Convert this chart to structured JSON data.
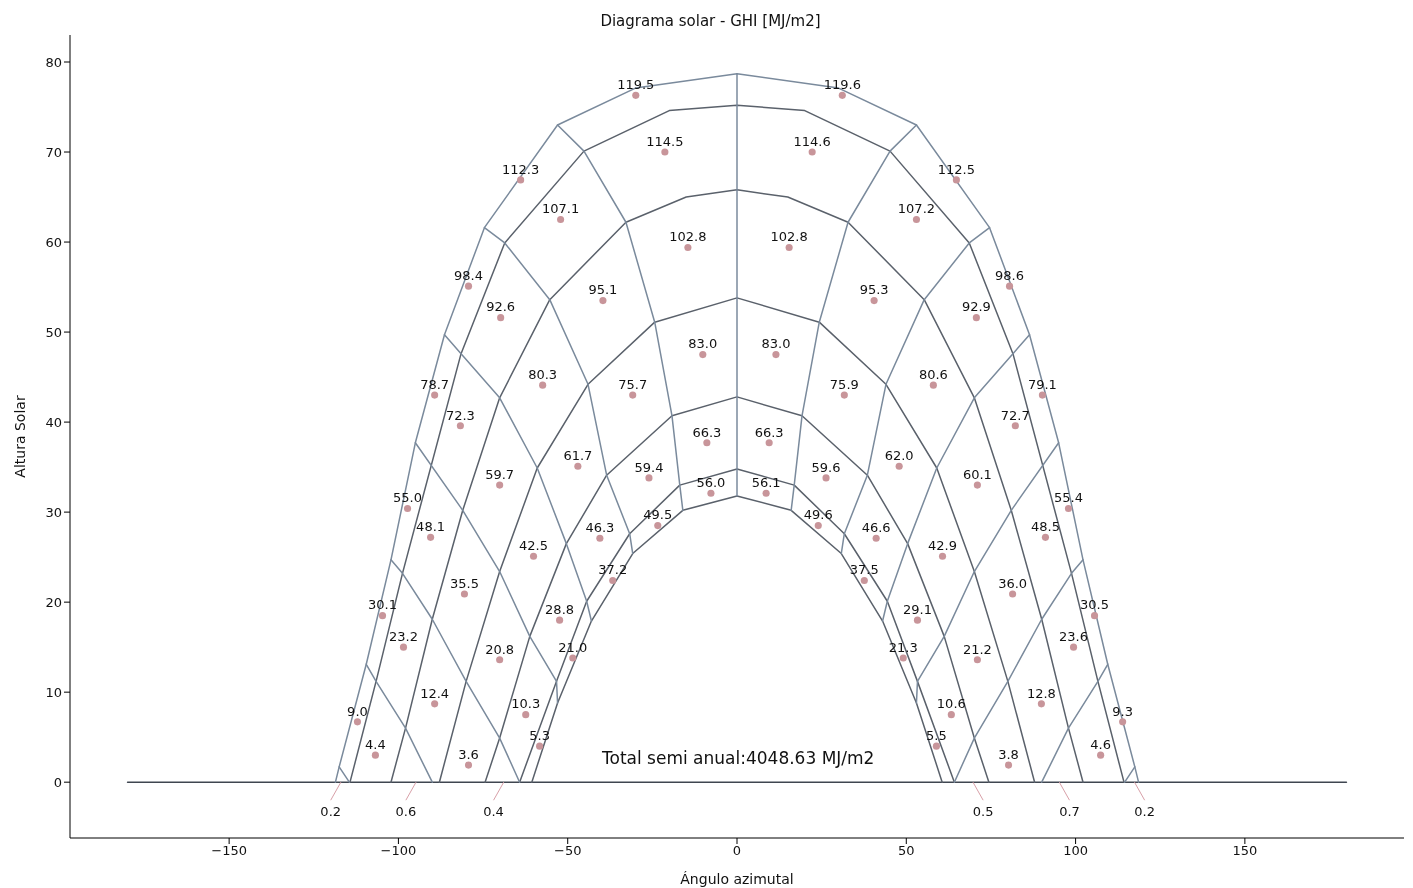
{
  "chart_data": {
    "type": "scatter",
    "title": "Diagrama solar - GHI [MJ/m2]",
    "xlabel": "Ángulo azimutal",
    "ylabel": "Altura Solar",
    "xlim": [
      -197,
      197
    ],
    "xticks": [
      -150,
      -100,
      -50,
      0,
      50,
      100,
      150
    ],
    "ylim": [
      -6.2,
      83
    ],
    "yticks": [
      0,
      10,
      20,
      30,
      40,
      50,
      60,
      70,
      80
    ],
    "annotations": [
      "Total semi anual:4048.63 MJ/m2",
      {
        "text": "0.2",
        "x": -117,
        "y": 0
      },
      {
        "text": "0.6",
        "x": -94.8,
        "y": 0
      },
      {
        "text": "0.4",
        "x": -68.9,
        "y": 0
      },
      {
        "text": "0.5",
        "x": 69.7,
        "y": 0
      },
      {
        "text": "0.7",
        "x": 95.2,
        "y": 0
      },
      {
        "text": "0.2",
        "x": 117.4,
        "y": 0
      },
      {
        "text": "119.5",
        "x": -29.9,
        "y": 76.3
      },
      {
        "text": "112.3",
        "x": -63.9,
        "y": 66.9
      },
      {
        "text": "114.5",
        "x": -21.3,
        "y": 70.0
      },
      {
        "text": "107.1",
        "x": -52.1,
        "y": 62.5
      },
      {
        "text": "102.8",
        "x": -14.5,
        "y": 59.4
      },
      {
        "text": "98.4",
        "x": -79.3,
        "y": 55.1
      },
      {
        "text": "92.6",
        "x": -69.8,
        "y": 51.6
      },
      {
        "text": "95.1",
        "x": -39.6,
        "y": 53.5
      },
      {
        "text": "83.0",
        "x": -10.1,
        "y": 47.5
      },
      {
        "text": "80.3",
        "x": -57.4,
        "y": 44.1
      },
      {
        "text": "75.7",
        "x": -30.8,
        "y": 43.0
      },
      {
        "text": "78.7",
        "x": -89.3,
        "y": 43.0
      },
      {
        "text": "72.3",
        "x": -81.7,
        "y": 39.6
      },
      {
        "text": "66.3",
        "x": -8.9,
        "y": 37.7
      },
      {
        "text": "61.7",
        "x": -47.0,
        "y": 35.1
      },
      {
        "text": "59.4",
        "x": -26.0,
        "y": 33.8
      },
      {
        "text": "59.7",
        "x": -70.1,
        "y": 33.0
      },
      {
        "text": "56.0",
        "x": -7.7,
        "y": 32.1
      },
      {
        "text": "55.0",
        "x": -97.3,
        "y": 30.4
      },
      {
        "text": "49.5",
        "x": -23.4,
        "y": 28.5
      },
      {
        "text": "48.1",
        "x": -90.5,
        "y": 27.2
      },
      {
        "text": "46.3",
        "x": -40.5,
        "y": 27.1
      },
      {
        "text": "42.5",
        "x": -60.1,
        "y": 25.1
      },
      {
        "text": "37.2",
        "x": -36.7,
        "y": 22.4
      },
      {
        "text": "35.5",
        "x": -80.5,
        "y": 20.9
      },
      {
        "text": "28.8",
        "x": -52.4,
        "y": 18.0
      },
      {
        "text": "30.1",
        "x": -104.7,
        "y": 18.5
      },
      {
        "text": "23.2",
        "x": -98.5,
        "y": 15.0
      },
      {
        "text": "20.8",
        "x": -70.1,
        "y": 13.6
      },
      {
        "text": "21.0",
        "x": -48.5,
        "y": 13.8
      },
      {
        "text": "12.4",
        "x": -89.3,
        "y": 8.7
      },
      {
        "text": "10.3",
        "x": -62.4,
        "y": 7.5
      },
      {
        "text": "9.0",
        "x": -112.1,
        "y": 6.7
      },
      {
        "text": "5.3",
        "x": -58.3,
        "y": 4.0
      },
      {
        "text": "4.4",
        "x": -106.8,
        "y": 3.0
      },
      {
        "text": "3.6",
        "x": -79.3,
        "y": 1.9
      },
      {
        "text": "119.6",
        "x": 31.1,
        "y": 76.3
      },
      {
        "text": "114.6",
        "x": 22.2,
        "y": 70.0
      },
      {
        "text": "112.5",
        "x": 64.8,
        "y": 66.9
      },
      {
        "text": "107.2",
        "x": 53.0,
        "y": 62.5
      },
      {
        "text": "102.8",
        "x": 15.4,
        "y": 59.4
      },
      {
        "text": "98.6",
        "x": 80.5,
        "y": 55.1
      },
      {
        "text": "95.3",
        "x": 40.5,
        "y": 53.5
      },
      {
        "text": "92.9",
        "x": 70.7,
        "y": 51.6
      },
      {
        "text": "83.0",
        "x": 11.5,
        "y": 47.5
      },
      {
        "text": "80.6",
        "x": 58.0,
        "y": 44.1
      },
      {
        "text": "79.1",
        "x": 90.2,
        "y": 43.0
      },
      {
        "text": "75.9",
        "x": 31.7,
        "y": 43.0
      },
      {
        "text": "72.7",
        "x": 82.2,
        "y": 39.6
      },
      {
        "text": "66.3",
        "x": 9.5,
        "y": 37.7
      },
      {
        "text": "62.0",
        "x": 47.9,
        "y": 35.1
      },
      {
        "text": "59.6",
        "x": 26.3,
        "y": 33.8
      },
      {
        "text": "60.1",
        "x": 71.0,
        "y": 33.0
      },
      {
        "text": "56.1",
        "x": 8.6,
        "y": 32.1
      },
      {
        "text": "55.4",
        "x": 97.9,
        "y": 30.4
      },
      {
        "text": "49.6",
        "x": 24.0,
        "y": 28.5
      },
      {
        "text": "48.5",
        "x": 91.1,
        "y": 27.2
      },
      {
        "text": "46.6",
        "x": 41.1,
        "y": 27.1
      },
      {
        "text": "42.9",
        "x": 60.7,
        "y": 25.1
      },
      {
        "text": "37.5",
        "x": 37.6,
        "y": 22.4
      },
      {
        "text": "36.0",
        "x": 81.4,
        "y": 20.9
      },
      {
        "text": "29.1",
        "x": 53.3,
        "y": 18.0
      },
      {
        "text": "30.5",
        "x": 105.6,
        "y": 18.5
      },
      {
        "text": "23.6",
        "x": 99.4,
        "y": 15.0
      },
      {
        "text": "21.2",
        "x": 71.0,
        "y": 13.6
      },
      {
        "text": "21.3",
        "x": 49.1,
        "y": 13.8
      },
      {
        "text": "12.8",
        "x": 89.9,
        "y": 8.7
      },
      {
        "text": "10.6",
        "x": 63.3,
        "y": 7.5
      },
      {
        "text": "9.3",
        "x": 113.9,
        "y": 6.7
      },
      {
        "text": "5.5",
        "x": 58.9,
        "y": 4.0
      },
      {
        "text": "4.6",
        "x": 107.4,
        "y": 3.0
      },
      {
        "text": "3.8",
        "x": 80.2,
        "y": 1.9
      }
    ],
    "series": [
      {
        "type": "line",
        "color": "#3f4650",
        "x": [
          -180,
          180
        ],
        "values": [
          0,
          0
        ]
      },
      {
        "type": "line",
        "color": "#7a8a9c",
        "x": [
          -118.6,
          -117.5,
          -109.5,
          -102.2,
          -95,
          -86.4,
          -74.6,
          -53,
          -30,
          0,
          30,
          53,
          74.6,
          86.4,
          95,
          102.2,
          109.5,
          117.5,
          118.6
        ],
        "values": [
          0,
          1.7,
          13.1,
          24.7,
          37.7,
          49.7,
          61.6,
          73,
          77.1,
          78.7,
          77.1,
          73,
          61.6,
          49.7,
          37.7,
          24.7,
          13.1,
          1.7,
          0
        ]
      },
      {
        "type": "line",
        "color": "#5a616b",
        "x": [
          -114.3,
          -106.6,
          -98.8,
          -81.5,
          -68.6,
          -45.2,
          -20,
          0,
          20,
          45.2,
          68.6,
          81.5,
          98.8,
          106.6,
          114.3
        ],
        "values": [
          0,
          11.2,
          23.2,
          47.6,
          59.9,
          70.1,
          74.6,
          75.2,
          74.6,
          70.1,
          59.9,
          47.6,
          23.2,
          11.2,
          0
        ]
      },
      {
        "type": "line",
        "color": "#5a616b",
        "x": [
          -102.2,
          -97.9,
          -90,
          -81,
          -70.1,
          -55.3,
          -32.8,
          -15,
          0,
          15,
          32.8,
          55.3,
          70.1,
          81,
          90,
          97.9,
          102.2
        ],
        "values": [
          0,
          6,
          18.1,
          30.2,
          42.7,
          53.6,
          62.2,
          65,
          65.8,
          65,
          62.2,
          53.6,
          42.7,
          30.2,
          18.1,
          6,
          0
        ]
      },
      {
        "type": "line",
        "color": "#5a616b",
        "x": [
          -87.9,
          -80,
          -70.1,
          -59,
          -44,
          -24.3,
          0,
          24.3,
          44,
          59,
          70.1,
          80,
          87.9
        ],
        "values": [
          0,
          11.2,
          23.4,
          34.9,
          44.2,
          51.1,
          53.8,
          51.1,
          44.2,
          34.9,
          23.4,
          11.2,
          0
        ]
      },
      {
        "type": "line",
        "color": "#5a616b",
        "x": [
          -74.4,
          -70.1,
          -61.2,
          -50.4,
          -38.5,
          -19.2,
          0,
          19.2,
          38.5,
          50.4,
          61.2,
          70.1,
          74.4
        ],
        "values": [
          0,
          4.9,
          16.2,
          26.5,
          34.1,
          40.7,
          42.8,
          40.7,
          34.1,
          26.5,
          16.2,
          4.9,
          0
        ]
      },
      {
        "type": "line",
        "color": "#5a616b",
        "x": [
          -64.2,
          -53.3,
          -44.4,
          -31.7,
          -16.9,
          0,
          16.9,
          31.7,
          44.4,
          53.3,
          64.2
        ],
        "values": [
          0,
          11.2,
          20.1,
          27.6,
          33,
          34.8,
          33,
          27.6,
          20.1,
          11.2,
          0
        ]
      },
      {
        "type": "line",
        "color": "#5a616b",
        "x": [
          -60.6,
          -53,
          -43,
          -30.8,
          -16,
          0,
          16,
          30.8,
          43,
          53,
          60.6
        ],
        "values": [
          0,
          8.8,
          17.9,
          25.4,
          30.2,
          31.8,
          30.2,
          25.4,
          17.9,
          8.8,
          0
        ]
      },
      {
        "type": "line",
        "color": "#7a8a9c",
        "x": [
          0,
          0
        ],
        "values": [
          78.7,
          31.8
        ]
      },
      {
        "type": "line",
        "color": "#7a8a9c",
        "x": [
          -53,
          -45.2,
          -32.8,
          -24.3,
          -19.2,
          -16.9,
          -16
        ],
        "values": [
          73,
          70.1,
          62.2,
          51.1,
          40.7,
          33,
          30.2
        ]
      },
      {
        "type": "line",
        "color": "#7a8a9c",
        "x": [
          -74.6,
          -68.6,
          -55.3,
          -44,
          -38.5,
          -31.7,
          -30.8
        ],
        "values": [
          61.6,
          59.9,
          53.6,
          44.2,
          34.1,
          27.6,
          25.4
        ]
      },
      {
        "type": "line",
        "color": "#7a8a9c",
        "x": [
          -86.4,
          -81.5,
          -70.1,
          -59,
          -50.4,
          -44.4,
          -43
        ],
        "values": [
          49.7,
          47.6,
          42.7,
          34.9,
          26.5,
          20.1,
          17.9
        ]
      },
      {
        "type": "line",
        "color": "#7a8a9c",
        "x": [
          -95,
          -81,
          -70.1,
          -61.2,
          -53.3,
          -53
        ],
        "values": [
          37.7,
          30.2,
          23.4,
          16.2,
          11.2,
          8.8
        ]
      },
      {
        "type": "line",
        "color": "#7a8a9c",
        "x": [
          -102.2,
          -98.8,
          -90,
          -80,
          -70.1,
          -64.2
        ],
        "values": [
          24.7,
          23.2,
          18.1,
          11.2,
          4.9,
          0
        ]
      },
      {
        "type": "line",
        "color": "#7a8a9c",
        "x": [
          -109.5,
          -106.6,
          -97.9,
          -90
        ],
        "values": [
          13.1,
          11.2,
          6,
          0
        ]
      },
      {
        "type": "line",
        "color": "#7a8a9c",
        "x": [
          -117.5,
          -114.5
        ],
        "values": [
          1.7,
          0
        ]
      },
      {
        "type": "line",
        "color": "#7a8a9c",
        "x": [
          53,
          45.2,
          32.8,
          24.3,
          19.2,
          16.9,
          16
        ],
        "values": [
          73,
          70.1,
          62.2,
          51.1,
          40.7,
          33,
          30.2
        ]
      },
      {
        "type": "line",
        "color": "#7a8a9c",
        "x": [
          74.6,
          68.6,
          55.3,
          44,
          38.5,
          31.7,
          30.8
        ],
        "values": [
          61.6,
          59.9,
          53.6,
          44.2,
          34.1,
          27.6,
          25.4
        ]
      },
      {
        "type": "line",
        "color": "#7a8a9c",
        "x": [
          86.4,
          81.5,
          70.1,
          59,
          50.4,
          44.4,
          43
        ],
        "values": [
          49.7,
          47.6,
          42.7,
          34.9,
          26.5,
          20.1,
          17.9
        ]
      },
      {
        "type": "line",
        "color": "#7a8a9c",
        "x": [
          95,
          81,
          70.1,
          61.2,
          53.3,
          53
        ],
        "values": [
          37.7,
          30.2,
          23.4,
          16.2,
          11.2,
          8.8
        ]
      },
      {
        "type": "line",
        "color": "#7a8a9c",
        "x": [
          102.2,
          98.8,
          90,
          80,
          70.1,
          64.2
        ],
        "values": [
          24.7,
          23.2,
          18.1,
          11.2,
          4.9,
          0
        ]
      },
      {
        "type": "line",
        "color": "#7a8a9c",
        "x": [
          109.5,
          106.6,
          97.9,
          90
        ],
        "values": [
          13.1,
          11.2,
          6,
          0
        ]
      },
      {
        "type": "line",
        "color": "#7a8a9c",
        "x": [
          117.5,
          114.5
        ],
        "values": [
          1.7,
          0
        ]
      },
      {
        "color": "#c8959a",
        "marker": "circle",
        "x": [
          -29.9,
          -63.9,
          -21.3,
          -52.1,
          -14.5,
          -79.3,
          -69.8,
          -39.6,
          -10.1,
          -57.4,
          -30.8,
          -89.3,
          -81.7,
          -8.9,
          -47.0,
          -26.0,
          -70.1,
          -7.7,
          -97.3,
          -23.4,
          -90.5,
          -40.5,
          -60.1,
          -36.7,
          -80.5,
          -52.4,
          -104.7,
          -98.5,
          -70.1,
          -48.5,
          -89.3,
          -62.4,
          -112.1,
          -58.3,
          -106.8,
          -79.3,
          31.1,
          22.2,
          64.8,
          53.0,
          15.4,
          80.5,
          40.5,
          70.7,
          11.5,
          58.0,
          90.2,
          31.7,
          82.2,
          9.5,
          47.9,
          26.3,
          71.0,
          8.6,
          97.9,
          24.0,
          91.1,
          41.1,
          60.7,
          37.6,
          81.4,
          53.3,
          105.6,
          99.4,
          71.0,
          49.1,
          89.9,
          63.3,
          113.9,
          58.9,
          107.4,
          80.2
        ],
        "values": [
          76.3,
          66.9,
          70.0,
          62.5,
          59.4,
          55.1,
          51.6,
          53.5,
          47.5,
          44.1,
          43.0,
          43.0,
          39.6,
          37.7,
          35.1,
          33.8,
          33.0,
          32.1,
          30.4,
          28.5,
          27.2,
          27.1,
          25.1,
          22.4,
          20.9,
          18.0,
          18.5,
          15.0,
          13.6,
          13.8,
          8.7,
          7.5,
          6.7,
          4.0,
          3.0,
          1.9,
          76.3,
          70.0,
          66.9,
          62.5,
          59.4,
          55.1,
          53.5,
          51.6,
          47.5,
          44.1,
          43.0,
          43.0,
          39.6,
          37.7,
          35.1,
          33.8,
          33.0,
          32.1,
          30.4,
          28.5,
          27.2,
          27.1,
          25.1,
          22.4,
          20.9,
          18.0,
          18.5,
          15.0,
          13.6,
          13.8,
          8.7,
          7.5,
          6.7,
          4.0,
          3.0,
          1.9
        ]
      }
    ]
  }
}
